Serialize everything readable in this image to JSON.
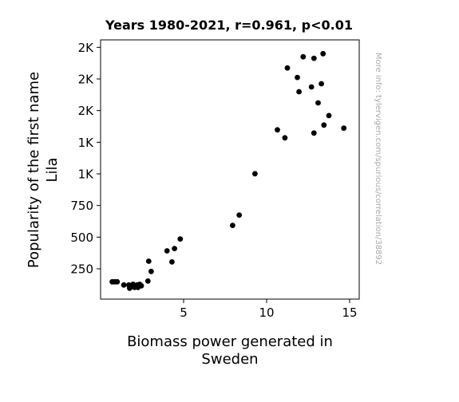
{
  "chart_data": {
    "type": "scatter",
    "title": "Years 1980-2021, r=0.961, p<0.01",
    "xlabel_lines": [
      "Biomass power generated in",
      "Sweden"
    ],
    "ylabel_lines": [
      "Popularity of the first name",
      "Lila"
    ],
    "watermark": "More info: tylervigen.com/spurious/correlation/38892",
    "xlim": [
      0.0,
      15.4
    ],
    "ylim": [
      0,
      2000
    ],
    "grid": false,
    "x_ticks": [
      {
        "value": 5,
        "label": "5"
      },
      {
        "value": 10,
        "label": "10"
      },
      {
        "value": 15,
        "label": "15"
      }
    ],
    "y_ticks": [
      {
        "value": 250,
        "label": "250"
      },
      {
        "value": 500,
        "label": "500"
      },
      {
        "value": 750,
        "label": "750"
      },
      {
        "value": 1000,
        "label": "1K"
      },
      {
        "value": 1250,
        "label": "1K"
      },
      {
        "value": 1500,
        "label": "2K"
      },
      {
        "value": 1750,
        "label": "2K"
      },
      {
        "value": 2000,
        "label": "2K"
      }
    ],
    "points": [
      {
        "x": 0.7,
        "y": 147
      },
      {
        "x": 0.85,
        "y": 147
      },
      {
        "x": 1.0,
        "y": 147
      },
      {
        "x": 1.4,
        "y": 122
      },
      {
        "x": 1.7,
        "y": 122
      },
      {
        "x": 1.75,
        "y": 97
      },
      {
        "x": 1.85,
        "y": 110
      },
      {
        "x": 1.95,
        "y": 128
      },
      {
        "x": 2.05,
        "y": 103
      },
      {
        "x": 2.15,
        "y": 116
      },
      {
        "x": 2.2,
        "y": 122
      },
      {
        "x": 2.25,
        "y": 103
      },
      {
        "x": 2.35,
        "y": 128
      },
      {
        "x": 2.45,
        "y": 116
      },
      {
        "x": 2.85,
        "y": 153
      },
      {
        "x": 2.9,
        "y": 310
      },
      {
        "x": 3.05,
        "y": 229
      },
      {
        "x": 4.0,
        "y": 392
      },
      {
        "x": 4.3,
        "y": 304
      },
      {
        "x": 4.45,
        "y": 410
      },
      {
        "x": 4.8,
        "y": 486
      },
      {
        "x": 7.95,
        "y": 593
      },
      {
        "x": 8.35,
        "y": 675
      },
      {
        "x": 9.3,
        "y": 1001
      },
      {
        "x": 10.65,
        "y": 1348
      },
      {
        "x": 11.1,
        "y": 1285
      },
      {
        "x": 11.25,
        "y": 1837
      },
      {
        "x": 11.85,
        "y": 1762
      },
      {
        "x": 11.95,
        "y": 1649
      },
      {
        "x": 12.2,
        "y": 1925
      },
      {
        "x": 12.7,
        "y": 1687
      },
      {
        "x": 12.85,
        "y": 1913
      },
      {
        "x": 12.85,
        "y": 1323
      },
      {
        "x": 13.1,
        "y": 1561
      },
      {
        "x": 13.3,
        "y": 1712
      },
      {
        "x": 13.4,
        "y": 1950
      },
      {
        "x": 13.45,
        "y": 1386
      },
      {
        "x": 13.75,
        "y": 1461
      },
      {
        "x": 14.65,
        "y": 1361
      }
    ]
  }
}
